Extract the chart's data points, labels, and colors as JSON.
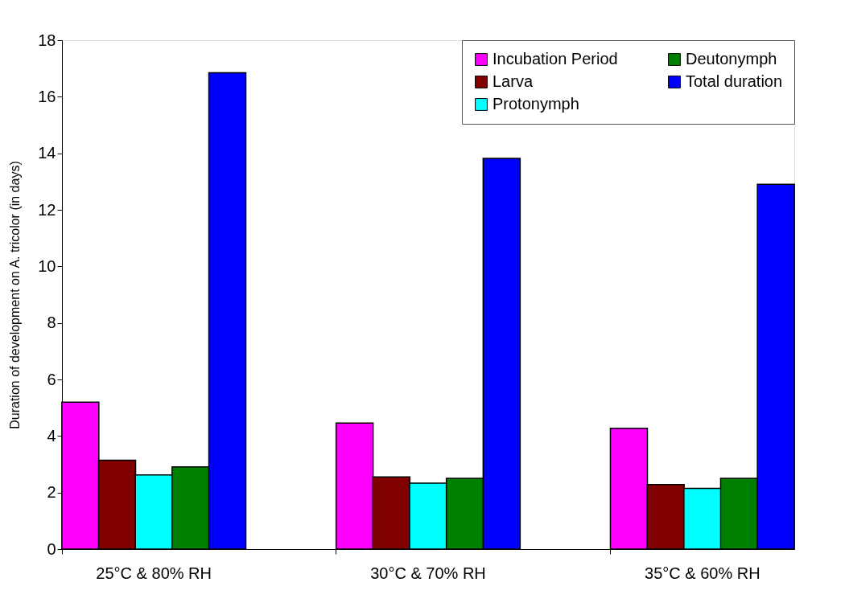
{
  "chart_data": {
    "type": "bar",
    "ylabel": "Duration of development on A. tricolor  (in days)",
    "categories": [
      "25°C & 80% RH",
      "30°C & 70% RH",
      "35°C & 60% RH"
    ],
    "series": [
      {
        "name": "Incubation Period",
        "color": "#ff00ff",
        "values": [
          5.2,
          4.46,
          4.27
        ]
      },
      {
        "name": "Larva",
        "color": "#800000",
        "values": [
          3.14,
          2.55,
          2.28
        ]
      },
      {
        "name": "Protonymph",
        "color": "#00ffff",
        "values": [
          2.62,
          2.33,
          2.15
        ]
      },
      {
        "name": "Deutonymph",
        "color": "#008000",
        "values": [
          2.91,
          2.5,
          2.5
        ]
      },
      {
        "name": "Total duration",
        "color": "#0000ff",
        "values": [
          16.85,
          13.82,
          12.9
        ]
      }
    ],
    "ylim": [
      0,
      18
    ],
    "yticks": [
      0,
      2,
      4,
      6,
      8,
      10,
      12,
      14,
      16,
      18
    ],
    "grid": false,
    "legend": "top right"
  }
}
